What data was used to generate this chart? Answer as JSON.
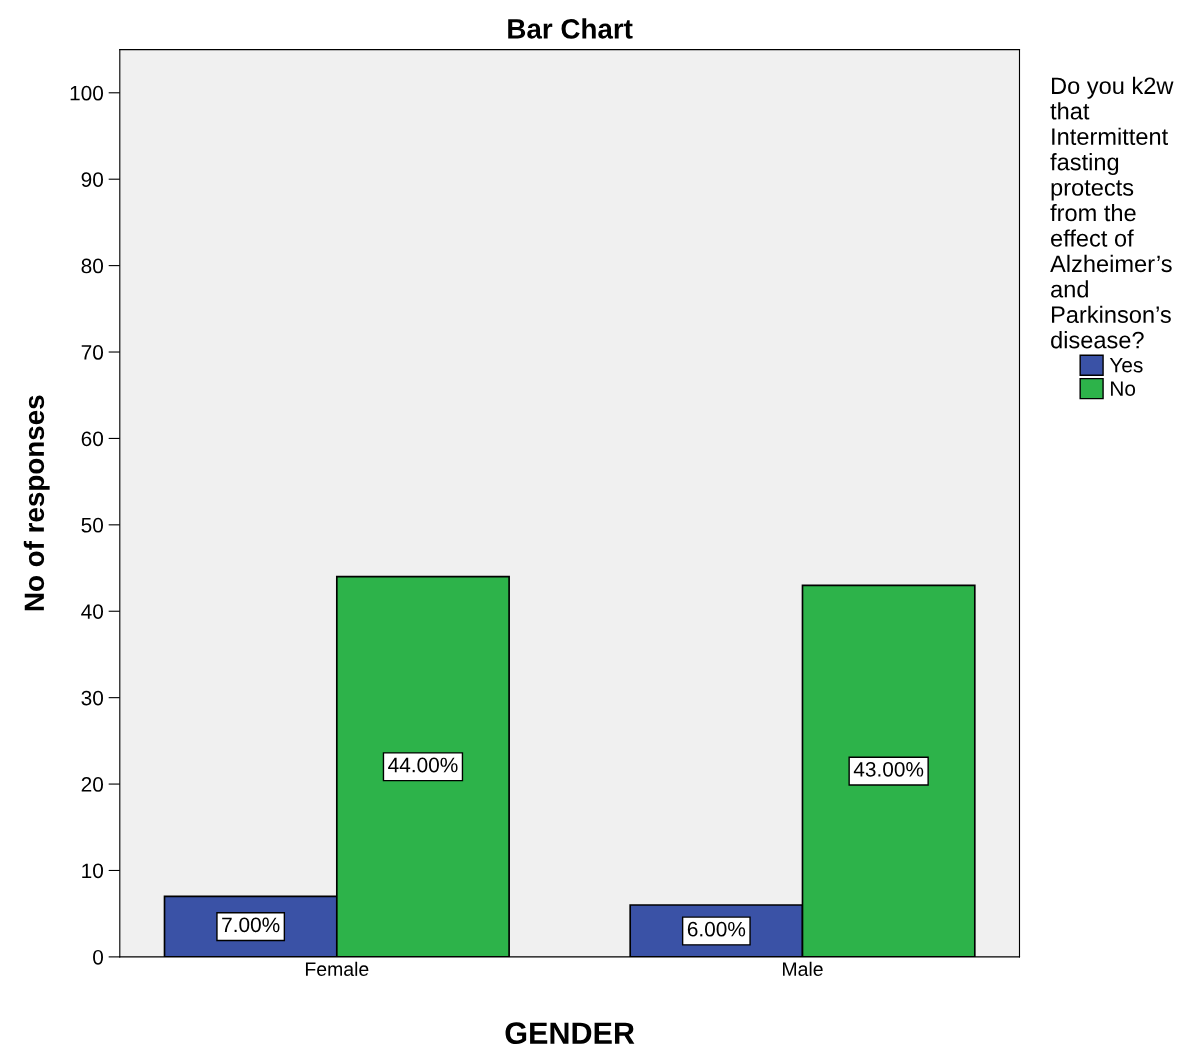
{
  "chart_data": {
    "type": "bar",
    "title": "Bar Chart",
    "xlabel": "GENDER",
    "ylabel": "No of responses",
    "legend_title": "Do you k2w that Intermittent fasting protects from the effect of Alzheimer’s and Parkinson’s disease?",
    "categories": [
      "Female",
      "Male"
    ],
    "series": [
      {
        "name": "Yes",
        "color": "#3a52a6",
        "values": [
          7,
          6
        ],
        "value_labels": [
          "7.00%",
          "6.00%"
        ]
      },
      {
        "name": "No",
        "color": "#2db34a",
        "values": [
          44,
          43
        ],
        "value_labels": [
          "44.00%",
          "43.00%"
        ]
      }
    ],
    "ylim": [
      0,
      105
    ],
    "yticks": [
      0,
      10,
      20,
      30,
      40,
      50,
      60,
      70,
      80,
      90,
      100
    ],
    "grid": false,
    "legend": "right"
  }
}
